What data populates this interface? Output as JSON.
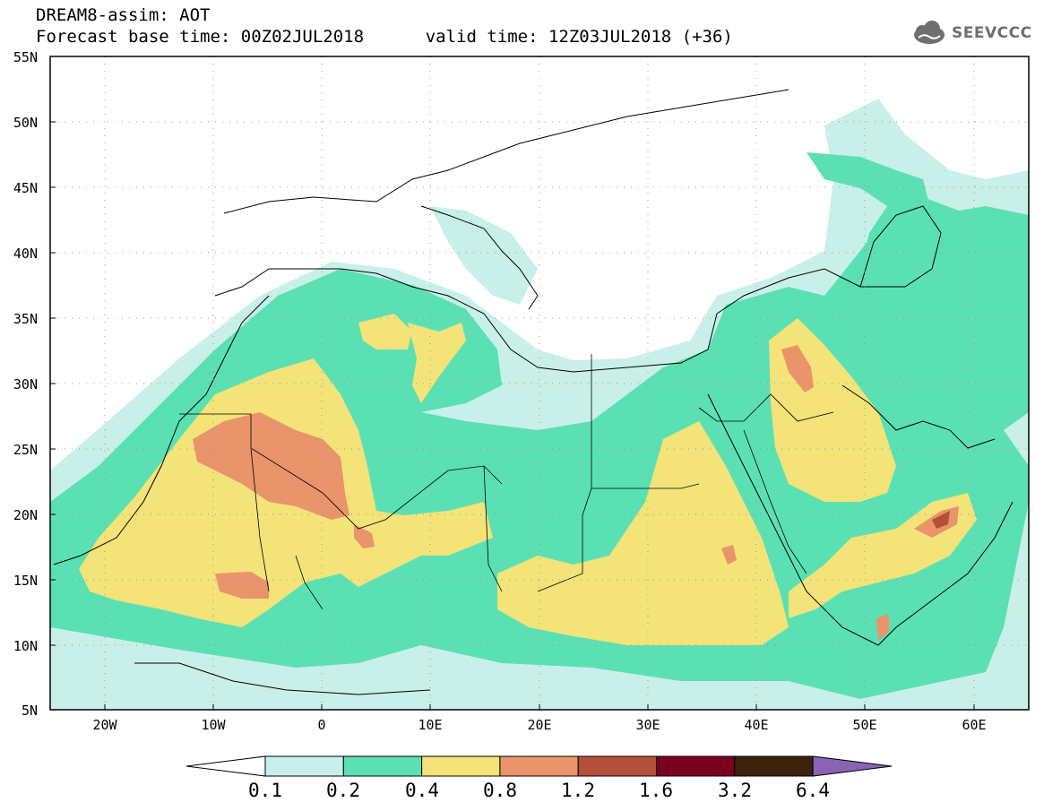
{
  "header": {
    "title": "DREAM8-assim: AOT",
    "base_time": "Forecast base time: 00Z02JUL2018",
    "valid_time": "valid time: 12Z03JUL2018 (+36)"
  },
  "logo": {
    "text": "SEEVCCC",
    "icon": "cloud-icon"
  },
  "map": {
    "lat_labels": [
      "55N",
      "50N",
      "45N",
      "40N",
      "35N",
      "30N",
      "25N",
      "20N",
      "15N",
      "10N",
      "5N"
    ],
    "lon_labels": [
      "20W",
      "10W",
      "0",
      "10E",
      "20E",
      "30E",
      "40E",
      "50E",
      "60E"
    ],
    "lon_range": [
      "25W",
      "65E"
    ],
    "lat_range": [
      "5N",
      "55N"
    ],
    "grid": "dotted"
  },
  "colorbar": {
    "ticks": [
      "0.1",
      "0.2",
      "0.4",
      "0.8",
      "1.2",
      "1.6",
      "3.2",
      "6.4"
    ],
    "colors": [
      "#ffffff",
      "#c8f0e8",
      "#5be0b4",
      "#f3e378",
      "#e9946a",
      "#b4503a",
      "#7a0020",
      "#3a220c",
      "#8a64b4"
    ]
  }
}
